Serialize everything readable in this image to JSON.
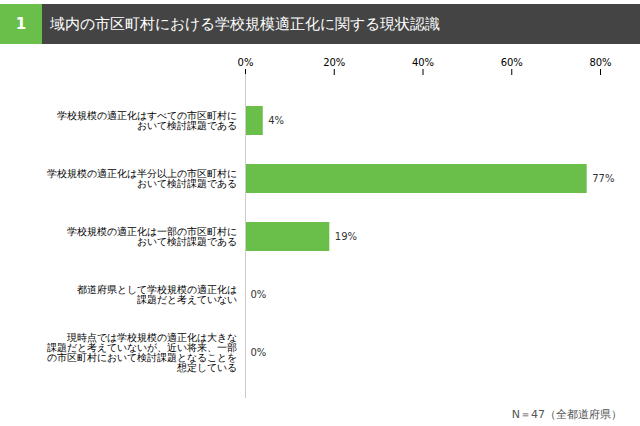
{
  "chart_data": {
    "type": "bar",
    "orientation": "horizontal",
    "title": "域内の市区町村における学校規模適正化に関する現状認識",
    "annotations": [
      "1",
      "N＝47（全都道府県）"
    ],
    "categories": [
      "学校規模の適正化はすべての市区町村に\nおいて検討課題である",
      "学校規模の適正化は半分以上の市区町村に\nおいて検討課題である",
      "学校規模の適正化は一部の市区町村に\nおいて検討課題である",
      "都道府県として学校規模の適正化は\n課題だと考えていない",
      "現時点では学校規模の適正化は大きな\n課題だと考えていないが、近い将来、一部\nの市区町村において検討課題となることを\n想定している"
    ],
    "values": [
      4,
      77,
      19,
      0,
      0
    ],
    "value_labels": [
      "4%",
      "77%",
      "19%",
      "0%",
      "0%"
    ],
    "data_labels": true,
    "color": "#6abf4b",
    "xlim": [
      0,
      80
    ],
    "xticks": [
      {
        "value": 0,
        "label": "0%"
      },
      {
        "value": 20,
        "label": "20%"
      },
      {
        "value": 40,
        "label": "40%"
      },
      {
        "value": 60,
        "label": "60%"
      },
      {
        "value": 80,
        "label": "80%"
      }
    ],
    "grid": false
  }
}
